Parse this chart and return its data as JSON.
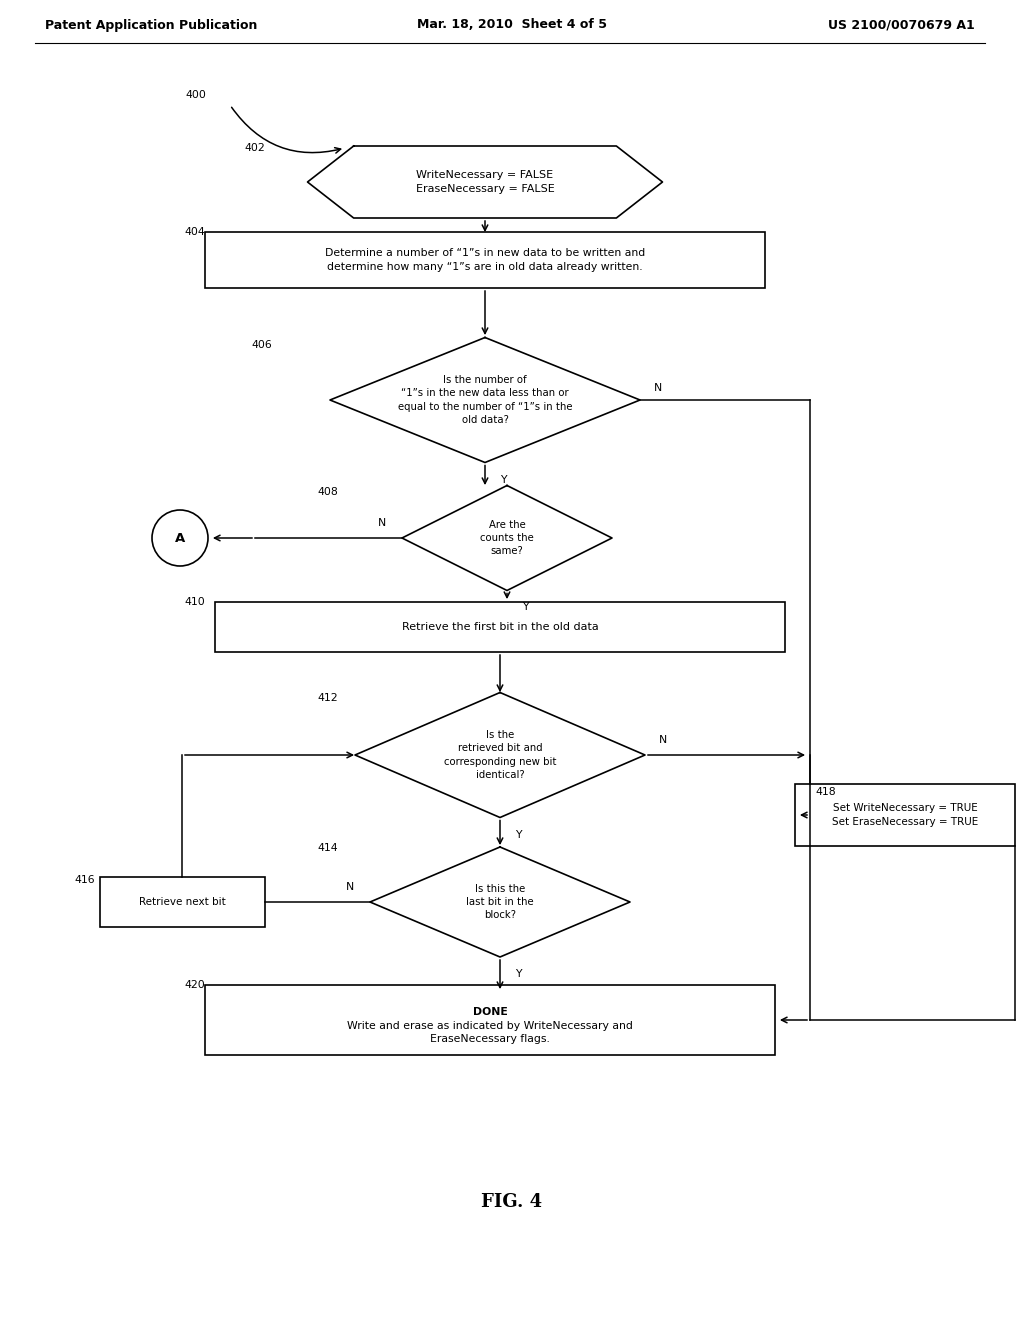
{
  "header_left": "Patent Application Publication",
  "header_center": "Mar. 18, 2010  Sheet 4 of 5",
  "header_right": "US 2100/0070679 A1",
  "fig_label": "FIG. 4",
  "bg_color": "#ffffff",
  "line_color": "#000000",
  "text_color": "#000000",
  "n402_text": "WriteNecessary = FALSE\nEraseNecessary = FALSE",
  "n404_text": "Determine a number of “1”s in new data to be written and\ndetermine how many “1”s are in old data already written.",
  "n406_text": "Is the number of\n“1”s in the new data less than or\nequal to the number of “1”s in the\nold data?",
  "n408_text": "Are the\ncounts the\nsame?",
  "n410_text": "Retrieve the first bit in the old data",
  "n412_text": "Is the\nretrieved bit and\ncorresponding new bit\nidentical?",
  "n414_text": "Is this the\nlast bit in the\nblock?",
  "n416_text": "Retrieve next bit",
  "n418_text": "Set WriteNecessary = TRUE\nSet EraseNecessary = TRUE",
  "n420_text": "DONE\nWrite and erase as indicated by WriteNecessary and\nEraseNecessary flags.",
  "labels": {
    "start": "400",
    "n402": "402",
    "n404": "404",
    "n406": "406",
    "n408": "408",
    "n410": "410",
    "n412": "412",
    "n414": "414",
    "n416": "416",
    "n418": "418",
    "n420": "420"
  }
}
